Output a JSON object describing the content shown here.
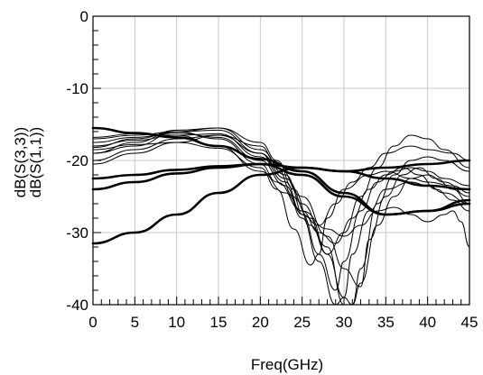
{
  "chart_data": {
    "type": "line",
    "xlabel": "Freq(GHz)",
    "ylabel_lines": [
      "dB(S(3,3))",
      "dB(S(1,1))"
    ],
    "xlim": [
      0,
      45
    ],
    "ylim": [
      -40,
      0
    ],
    "x_ticks": [
      0,
      5,
      10,
      15,
      20,
      25,
      30,
      35,
      40,
      45
    ],
    "y_ticks": [
      0,
      -10,
      -20,
      -30,
      -40
    ],
    "grid": true,
    "colors": {
      "trace": "#000000",
      "grid": "#c8c8c8"
    },
    "series": [
      {
        "x": [
          0,
          5,
          10,
          15,
          20,
          25,
          30,
          35,
          40,
          45
        ],
        "y": [
          -15.5,
          -16.2,
          -16.8,
          -18.0,
          -19.8,
          -21.5,
          -24.5,
          -27.5,
          -27.0,
          -25.5
        ]
      },
      {
        "x": [
          0,
          5,
          10,
          15,
          20,
          25,
          30,
          35,
          40,
          45
        ],
        "y": [
          -22.5,
          -22.0,
          -21.3,
          -20.8,
          -20.5,
          -21.0,
          -21.5,
          -21.0,
          -20.5,
          -20.0
        ]
      },
      {
        "x": [
          0,
          5,
          10,
          15,
          20,
          25,
          30,
          35,
          40,
          45
        ],
        "y": [
          -24.0,
          -23.0,
          -21.8,
          -21.0,
          -20.5,
          -22.0,
          -25.0,
          -27.5,
          -27.0,
          -26.0
        ]
      },
      {
        "x": [
          0,
          5,
          10,
          15,
          20,
          25,
          30,
          35,
          40,
          45
        ],
        "y": [
          -31.5,
          -30.0,
          -27.5,
          -24.5,
          -22.0,
          -21.0,
          -21.5,
          -22.5,
          -23.5,
          -24.0
        ]
      },
      {
        "x": [
          0,
          5,
          10,
          15,
          20,
          22,
          24,
          26,
          27,
          28,
          30,
          33,
          35,
          38,
          40,
          43,
          45
        ],
        "y": [
          -18.5,
          -17.8,
          -17.5,
          -18.3,
          -21.0,
          -24.0,
          -29.5,
          -34.5,
          -33.0,
          -28.0,
          -24.0,
          -22.0,
          -21.5,
          -22.5,
          -23.0,
          -23.5,
          -24.5
        ]
      },
      {
        "x": [
          0,
          5,
          10,
          15,
          20,
          22,
          24,
          25,
          27,
          29,
          31,
          33,
          35,
          38,
          40,
          43,
          45
        ],
        "y": [
          -20.0,
          -18.5,
          -17.0,
          -16.5,
          -19.0,
          -21.0,
          -25.0,
          -27.5,
          -29.0,
          -26.0,
          -23.0,
          -21.0,
          -19.0,
          -18.0,
          -18.5,
          -19.0,
          -20.0
        ]
      },
      {
        "x": [
          0,
          5,
          10,
          15,
          20,
          22,
          24,
          26,
          28,
          30,
          32,
          34,
          36,
          38,
          40,
          42,
          45
        ],
        "y": [
          -19.0,
          -18.0,
          -16.0,
          -15.5,
          -17.5,
          -20.0,
          -24.0,
          -29.0,
          -33.0,
          -30.0,
          -25.0,
          -21.0,
          -18.0,
          -16.5,
          -17.0,
          -18.5,
          -21.0
        ]
      },
      {
        "x": [
          0,
          5,
          10,
          15,
          20,
          23,
          25,
          27,
          29,
          30,
          32,
          34,
          36,
          38,
          40,
          42,
          45
        ],
        "y": [
          -18.0,
          -17.2,
          -16.5,
          -16.3,
          -19.5,
          -23.0,
          -27.5,
          -33.0,
          -38.0,
          -34.0,
          -27.0,
          -23.0,
          -21.5,
          -21.0,
          -21.5,
          -22.5,
          -23.5
        ]
      },
      {
        "x": [
          0,
          5,
          10,
          15,
          20,
          23,
          25,
          27,
          29,
          30,
          31,
          33,
          35,
          38,
          40,
          42,
          45
        ],
        "y": [
          -17.5,
          -16.8,
          -16.2,
          -16.8,
          -20.0,
          -23.5,
          -28.0,
          -34.0,
          -40.0,
          -39.0,
          -33.0,
          -27.0,
          -24.0,
          -23.0,
          -23.5,
          -24.5,
          -26.0
        ]
      },
      {
        "x": [
          0,
          5,
          10,
          15,
          20,
          23,
          25,
          28,
          30,
          31,
          32,
          34,
          36,
          38,
          40,
          42,
          45
        ],
        "y": [
          -19.0,
          -17.5,
          -15.8,
          -15.5,
          -18.5,
          -22.0,
          -26.0,
          -32.0,
          -40.0,
          -40.0,
          -35.0,
          -26.0,
          -22.0,
          -20.0,
          -19.5,
          -20.0,
          -21.5
        ]
      },
      {
        "x": [
          0,
          5,
          10,
          15,
          20,
          23,
          26,
          28,
          30,
          31,
          32,
          34,
          36,
          38,
          40,
          42,
          45
        ],
        "y": [
          -18.2,
          -17.0,
          -16.0,
          -15.8,
          -19.0,
          -22.5,
          -28.0,
          -33.0,
          -39.0,
          -40.0,
          -37.0,
          -29.0,
          -25.0,
          -22.5,
          -22.0,
          -23.0,
          -25.0
        ]
      },
      {
        "x": [
          0,
          5,
          10,
          15,
          20,
          22,
          25,
          28,
          30,
          32,
          33,
          35,
          37,
          39,
          41,
          43,
          45
        ],
        "y": [
          -20.5,
          -19.0,
          -17.5,
          -16.5,
          -18.0,
          -20.5,
          -25.0,
          -30.5,
          -35.0,
          -37.5,
          -31.0,
          -25.0,
          -22.0,
          -21.0,
          -22.5,
          -24.0,
          -26.0
        ]
      },
      {
        "x": [
          0,
          5,
          10,
          15,
          20,
          22,
          25,
          27,
          29,
          31,
          33,
          35,
          37,
          39,
          41,
          43,
          45
        ],
        "y": [
          -17.0,
          -16.5,
          -16.0,
          -17.0,
          -20.5,
          -23.0,
          -27.0,
          -30.0,
          -31.5,
          -28.0,
          -24.0,
          -22.0,
          -21.0,
          -22.0,
          -24.0,
          -25.5,
          -27.0
        ]
      },
      {
        "x": [
          0,
          5,
          10,
          15,
          20,
          23,
          25,
          28,
          30,
          32,
          34,
          36,
          38,
          40,
          42,
          43,
          44,
          45
        ],
        "y": [
          -16.8,
          -16.3,
          -16.5,
          -18.0,
          -21.5,
          -24.5,
          -27.0,
          -29.5,
          -30.5,
          -29.0,
          -27.0,
          -26.5,
          -27.5,
          -28.5,
          -27.5,
          -27.0,
          -28.5,
          -32.0
        ]
      }
    ]
  }
}
